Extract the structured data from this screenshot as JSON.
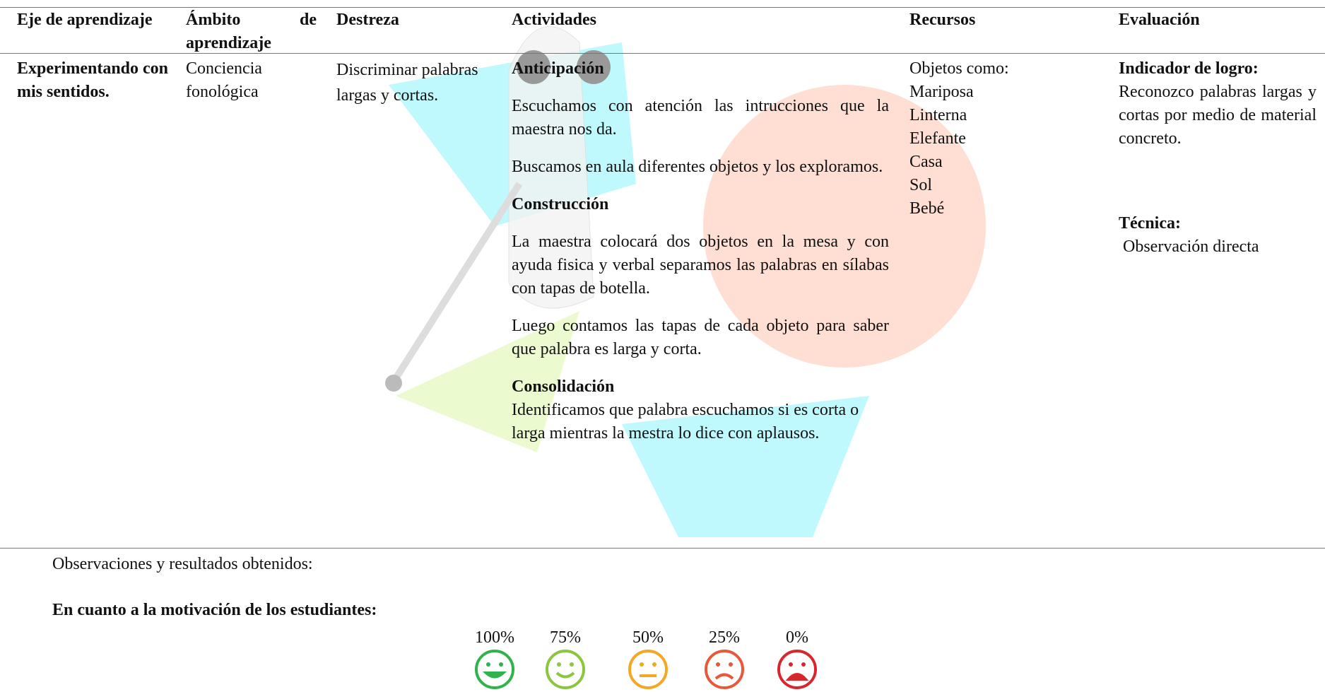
{
  "table": {
    "headers": [
      "Eje de aprendizaje",
      "Ámbito de aprendizaje",
      "Destreza",
      "Actividades",
      "Recursos",
      "Evaluación"
    ],
    "row": {
      "eje": "Experimentando con mis sentidos.",
      "ambito": "Conciencia fonológica",
      "destreza": "Discriminar palabras largas y cortas.",
      "actividades": [
        {
          "heading": "Anticipación",
          "paragraphs": [
            "Escuchamos con atención las intrucciones que la maestra nos da.",
            "Buscamos en aula diferentes objetos y los exploramos."
          ]
        },
        {
          "heading": "Construcción",
          "paragraphs": [
            "La maestra colocará dos objetos en la mesa y con ayuda fisica y verbal separamos las palabras en sílabas con tapas de botella.",
            "Luego contamos las tapas de cada objeto para saber que palabra es larga y corta."
          ]
        },
        {
          "heading": "Consolidación",
          "paragraphs": [
            "Identificamos que palabra escuchamos si es corta o larga mientras la mestra lo dice con aplausos."
          ]
        }
      ],
      "recursos": {
        "intro": "Objetos como:",
        "items": [
          "Mariposa",
          "Linterna",
          "Elefante",
          "Casa",
          "Sol",
          "Bebé"
        ]
      },
      "evaluacion": {
        "indicador_heading": "Indicador de logro:",
        "indicador": "Reconozco palabras largas y cortas por medio de material concreto.",
        "tecnica_heading": "Técnica:",
        "tecnica": "Observación directa"
      }
    }
  },
  "observaciones": "Observaciones y resultados obtenidos:",
  "motivacion": "En cuanto a la motivación de los estudiantes:",
  "scale": [
    "100%",
    "75%",
    "50%",
    "25%",
    "0%"
  ]
}
